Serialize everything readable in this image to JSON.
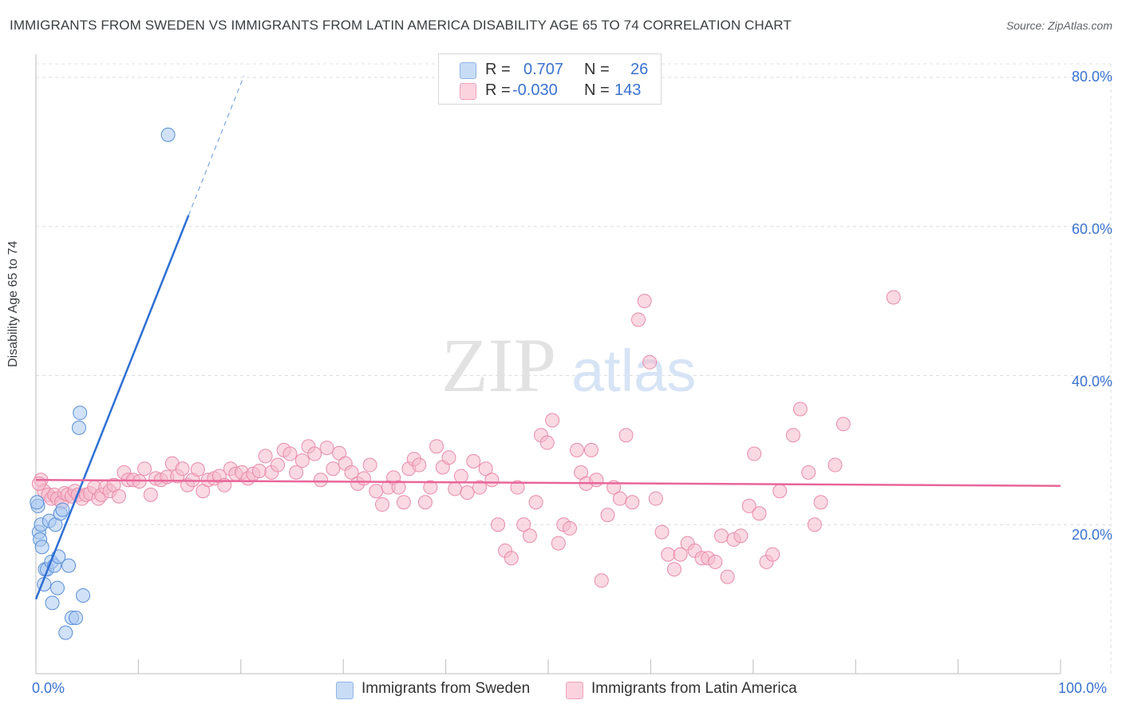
{
  "header": {
    "title": "IMMIGRANTS FROM SWEDEN VS IMMIGRANTS FROM LATIN AMERICA DISABILITY AGE 65 TO 74 CORRELATION CHART",
    "source": "Source: ZipAtlas.com"
  },
  "watermark": {
    "zip": "ZIP",
    "atlas": "atlas"
  },
  "legend": {
    "rows": [
      {
        "r_label": "R =",
        "r_value": "0.707",
        "n_label": "N =",
        "n_value": "26",
        "color": "#a9c8f2"
      },
      {
        "r_label": "R =",
        "r_value": "-0.030",
        "n_label": "N =",
        "n_value": "143",
        "color": "#f6b9cc"
      }
    ]
  },
  "bottom_legend": {
    "items": [
      {
        "label": "Immigrants from Sweden",
        "color": "#a9c8f2"
      },
      {
        "label": "Immigrants from Latin America",
        "color": "#f6b9cc"
      }
    ]
  },
  "chart_data": {
    "type": "scatter",
    "title": "IMMIGRANTS FROM SWEDEN VS IMMIGRANTS FROM LATIN AMERICA DISABILITY AGE 65 TO 74 CORRELATION CHART",
    "xlabel": "",
    "ylabel": "Disability Age 65 to 74",
    "xlim": [
      0,
      100
    ],
    "ylim": [
      0,
      80
    ],
    "x_tick_labels": [
      "0.0%",
      "100.0%"
    ],
    "y_tick_labels": [
      "80.0%",
      "60.0%",
      "40.0%",
      "20.0%"
    ],
    "y_ticks": [
      80,
      60,
      40,
      20
    ],
    "grid": true,
    "legend_position": "top-center",
    "series": [
      {
        "name": "Immigrants from Sweden",
        "color": "#4a86d8",
        "fill": "#a9c8f2",
        "r": 0.707,
        "n": 26,
        "trend": {
          "x0": 0.0,
          "y0": 10.0,
          "x1": 14.9,
          "y1": 61.5,
          "dash_x1": 20.3,
          "dash_y1": 80.2
        },
        "points": [
          [
            0.2,
            22.5
          ],
          [
            0.3,
            19.0
          ],
          [
            0.4,
            18.0
          ],
          [
            0.5,
            20.0
          ],
          [
            0.6,
            17.0
          ],
          [
            0.8,
            12.0
          ],
          [
            0.9,
            14.0
          ],
          [
            1.1,
            14.0
          ],
          [
            1.3,
            20.5
          ],
          [
            1.5,
            15.0
          ],
          [
            1.6,
            9.5
          ],
          [
            1.8,
            14.5
          ],
          [
            1.9,
            20.0
          ],
          [
            2.1,
            11.5
          ],
          [
            2.2,
            15.7
          ],
          [
            2.4,
            21.5
          ],
          [
            2.6,
            22.0
          ],
          [
            2.9,
            5.5
          ],
          [
            3.2,
            14.5
          ],
          [
            3.5,
            7.5
          ],
          [
            3.9,
            7.5
          ],
          [
            4.2,
            33.0
          ],
          [
            4.3,
            35.0
          ],
          [
            4.6,
            10.5
          ],
          [
            12.9,
            72.3
          ],
          [
            0.1,
            23.0
          ]
        ]
      },
      {
        "name": "Immigrants from Latin America",
        "color": "#e85a8c",
        "fill": "#f6b9cc",
        "r": -0.03,
        "n": 143,
        "trend": {
          "x0": 0.0,
          "y0": 26.0,
          "x1": 100.0,
          "y1": 25.2
        },
        "points": [
          [
            0.5,
            26.0
          ],
          [
            0.8,
            24.5
          ],
          [
            1.2,
            24.0
          ],
          [
            1.5,
            23.5
          ],
          [
            1.8,
            24.0
          ],
          [
            2.1,
            23.5
          ],
          [
            2.5,
            23.0
          ],
          [
            2.8,
            24.2
          ],
          [
            3.1,
            24.0
          ],
          [
            3.5,
            23.8
          ],
          [
            3.8,
            24.5
          ],
          [
            4.1,
            24.0
          ],
          [
            4.5,
            23.5
          ],
          [
            4.9,
            24.0
          ],
          [
            5.3,
            24.2
          ],
          [
            5.7,
            25.0
          ],
          [
            6.1,
            23.5
          ],
          [
            6.4,
            24.0
          ],
          [
            6.8,
            25.0
          ],
          [
            7.2,
            24.5
          ],
          [
            7.6,
            25.3
          ],
          [
            8.1,
            23.8
          ],
          [
            8.6,
            27.0
          ],
          [
            9.0,
            26.0
          ],
          [
            9.5,
            26.0
          ],
          [
            10.1,
            25.8
          ],
          [
            10.6,
            27.5
          ],
          [
            11.2,
            24.0
          ],
          [
            11.7,
            26.2
          ],
          [
            12.2,
            26.0
          ],
          [
            12.8,
            26.4
          ],
          [
            13.3,
            28.2
          ],
          [
            13.8,
            26.5
          ],
          [
            14.3,
            27.5
          ],
          [
            14.8,
            25.3
          ],
          [
            15.3,
            26.0
          ],
          [
            15.8,
            27.4
          ],
          [
            16.3,
            24.5
          ],
          [
            16.8,
            26.0
          ],
          [
            17.4,
            26.2
          ],
          [
            17.9,
            26.5
          ],
          [
            18.4,
            25.3
          ],
          [
            19.0,
            27.5
          ],
          [
            19.5,
            26.8
          ],
          [
            20.1,
            27.0
          ],
          [
            20.7,
            26.2
          ],
          [
            21.2,
            26.8
          ],
          [
            21.8,
            27.2
          ],
          [
            22.4,
            29.2
          ],
          [
            23.0,
            27.0
          ],
          [
            23.6,
            28.0
          ],
          [
            24.2,
            30.0
          ],
          [
            24.8,
            29.5
          ],
          [
            25.4,
            27.0
          ],
          [
            26.0,
            28.6
          ],
          [
            26.6,
            30.5
          ],
          [
            27.2,
            29.5
          ],
          [
            27.8,
            26.0
          ],
          [
            28.4,
            30.3
          ],
          [
            29.0,
            27.5
          ],
          [
            29.6,
            29.6
          ],
          [
            30.2,
            28.2
          ],
          [
            30.8,
            27.0
          ],
          [
            31.4,
            25.5
          ],
          [
            32.0,
            26.2
          ],
          [
            32.6,
            28.0
          ],
          [
            33.2,
            24.5
          ],
          [
            33.8,
            22.7
          ],
          [
            34.4,
            25.0
          ],
          [
            34.9,
            26.3
          ],
          [
            35.4,
            25.0
          ],
          [
            35.9,
            23.0
          ],
          [
            36.4,
            27.5
          ],
          [
            36.9,
            28.8
          ],
          [
            37.4,
            28.0
          ],
          [
            38.0,
            23.0
          ],
          [
            38.5,
            25.0
          ],
          [
            39.1,
            30.5
          ],
          [
            39.7,
            27.7
          ],
          [
            40.3,
            29.0
          ],
          [
            40.9,
            24.8
          ],
          [
            41.5,
            26.5
          ],
          [
            42.1,
            24.3
          ],
          [
            42.7,
            28.5
          ],
          [
            43.3,
            25.0
          ],
          [
            43.9,
            27.5
          ],
          [
            44.5,
            26.0
          ],
          [
            45.1,
            20.0
          ],
          [
            45.8,
            16.5
          ],
          [
            46.4,
            15.5
          ],
          [
            47.0,
            25.0
          ],
          [
            47.6,
            20.0
          ],
          [
            48.2,
            18.5
          ],
          [
            48.8,
            23.0
          ],
          [
            49.3,
            32.0
          ],
          [
            49.9,
            31.0
          ],
          [
            50.4,
            34.0
          ],
          [
            51.0,
            17.5
          ],
          [
            51.5,
            20.0
          ],
          [
            52.1,
            19.5
          ],
          [
            52.8,
            30.0
          ],
          [
            53.2,
            27.0
          ],
          [
            53.7,
            25.5
          ],
          [
            54.2,
            30.0
          ],
          [
            54.7,
            26.0
          ],
          [
            55.2,
            12.5
          ],
          [
            55.8,
            21.3
          ],
          [
            56.4,
            25.0
          ],
          [
            57.0,
            23.5
          ],
          [
            57.6,
            32.0
          ],
          [
            58.2,
            23.0
          ],
          [
            58.8,
            47.5
          ],
          [
            59.4,
            50.0
          ],
          [
            59.9,
            41.8
          ],
          [
            60.5,
            23.5
          ],
          [
            61.1,
            19.0
          ],
          [
            61.7,
            16.0
          ],
          [
            62.3,
            14.0
          ],
          [
            62.9,
            16.0
          ],
          [
            63.6,
            17.5
          ],
          [
            64.3,
            16.5
          ],
          [
            65.0,
            15.5
          ],
          [
            65.6,
            15.5
          ],
          [
            66.3,
            15.0
          ],
          [
            66.9,
            18.5
          ],
          [
            67.5,
            13.0
          ],
          [
            68.1,
            18.0
          ],
          [
            68.8,
            18.5
          ],
          [
            69.6,
            22.5
          ],
          [
            70.1,
            29.5
          ],
          [
            70.6,
            21.5
          ],
          [
            71.3,
            15.0
          ],
          [
            71.9,
            16.0
          ],
          [
            72.6,
            24.5
          ],
          [
            73.9,
            32.0
          ],
          [
            74.6,
            35.5
          ],
          [
            75.4,
            27.0
          ],
          [
            76.0,
            20.0
          ],
          [
            76.6,
            23.0
          ],
          [
            78.0,
            28.0
          ],
          [
            78.8,
            33.5
          ],
          [
            83.7,
            50.5
          ],
          [
            0.3,
            25.5
          ]
        ]
      }
    ]
  }
}
